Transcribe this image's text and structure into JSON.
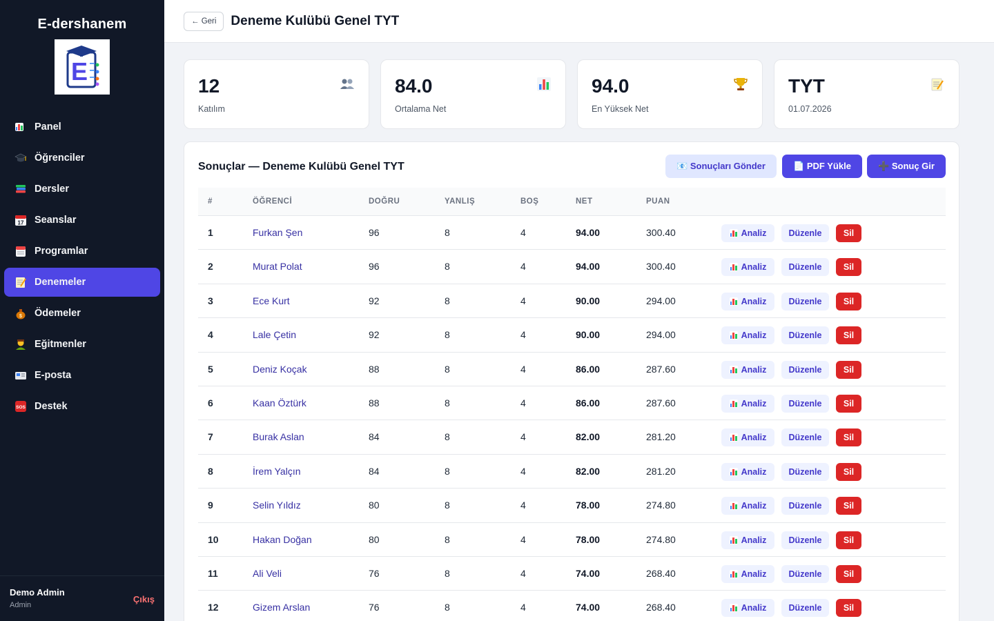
{
  "sidebar": {
    "brand": "E-dershanem",
    "nav": [
      {
        "label": "Panel",
        "icon": "bar-chart-icon",
        "active": false
      },
      {
        "label": "Öğrenciler",
        "icon": "graduation-cap-icon",
        "active": false
      },
      {
        "label": "Dersler",
        "icon": "books-icon",
        "active": false
      },
      {
        "label": "Seanslar",
        "icon": "calendar-icon",
        "active": false
      },
      {
        "label": "Programlar",
        "icon": "tear-off-calendar-icon",
        "active": false
      },
      {
        "label": "Denemeler",
        "icon": "memo-icon",
        "active": true
      },
      {
        "label": "Ödemeler",
        "icon": "money-bag-icon",
        "active": false
      },
      {
        "label": "Eğitmenler",
        "icon": "teacher-icon",
        "active": false
      },
      {
        "label": "E-posta",
        "icon": "envelope-icon",
        "active": false
      },
      {
        "label": "Destek",
        "icon": "sos-icon",
        "active": false
      }
    ],
    "user": {
      "name": "Demo Admin",
      "role": "Admin",
      "logout": "Çıkış"
    }
  },
  "header": {
    "back_label": "← Geri",
    "title": "Deneme Kulübü Genel TYT"
  },
  "stats": [
    {
      "value": "12",
      "label": "Katılım",
      "icon": "people-icon"
    },
    {
      "value": "84.0",
      "label": "Ortalama Net",
      "icon": "bar-chart-icon"
    },
    {
      "value": "94.0",
      "label": "En Yüksek Net",
      "icon": "trophy-icon"
    },
    {
      "value": "TYT",
      "label": "01.07.2026",
      "icon": "memo-icon"
    }
  ],
  "results": {
    "title": "Sonuçlar — Deneme Kulübü Genel TYT",
    "send_label": "📧 Sonuçları Gönder",
    "pdf_label": "📄 PDF Yükle",
    "add_label": "➕ Sonuç Gir",
    "columns": [
      "#",
      "ÖĞRENCİ",
      "DOĞRU",
      "YANLIŞ",
      "BOŞ",
      "NET",
      "PUAN"
    ],
    "action_labels": {
      "analyze": "Analiz",
      "edit": "Düzenle",
      "delete": "Sil"
    },
    "rows": [
      {
        "idx": "1",
        "name": "Furkan Şen",
        "correct": "96",
        "wrong": "8",
        "blank": "4",
        "net": "94.00",
        "score": "300.40"
      },
      {
        "idx": "2",
        "name": "Murat Polat",
        "correct": "96",
        "wrong": "8",
        "blank": "4",
        "net": "94.00",
        "score": "300.40"
      },
      {
        "idx": "3",
        "name": "Ece Kurt",
        "correct": "92",
        "wrong": "8",
        "blank": "4",
        "net": "90.00",
        "score": "294.00"
      },
      {
        "idx": "4",
        "name": "Lale Çetin",
        "correct": "92",
        "wrong": "8",
        "blank": "4",
        "net": "90.00",
        "score": "294.00"
      },
      {
        "idx": "5",
        "name": "Deniz Koçak",
        "correct": "88",
        "wrong": "8",
        "blank": "4",
        "net": "86.00",
        "score": "287.60"
      },
      {
        "idx": "6",
        "name": "Kaan Öztürk",
        "correct": "88",
        "wrong": "8",
        "blank": "4",
        "net": "86.00",
        "score": "287.60"
      },
      {
        "idx": "7",
        "name": "Burak Aslan",
        "correct": "84",
        "wrong": "8",
        "blank": "4",
        "net": "82.00",
        "score": "281.20"
      },
      {
        "idx": "8",
        "name": "İrem Yalçın",
        "correct": "84",
        "wrong": "8",
        "blank": "4",
        "net": "82.00",
        "score": "281.20"
      },
      {
        "idx": "9",
        "name": "Selin Yıldız",
        "correct": "80",
        "wrong": "8",
        "blank": "4",
        "net": "78.00",
        "score": "274.80"
      },
      {
        "idx": "10",
        "name": "Hakan Doğan",
        "correct": "80",
        "wrong": "8",
        "blank": "4",
        "net": "78.00",
        "score": "274.80"
      },
      {
        "idx": "11",
        "name": "Ali Veli",
        "correct": "76",
        "wrong": "8",
        "blank": "4",
        "net": "74.00",
        "score": "268.40"
      },
      {
        "idx": "12",
        "name": "Gizem Arslan",
        "correct": "76",
        "wrong": "8",
        "blank": "4",
        "net": "74.00",
        "score": "268.40"
      }
    ]
  },
  "colors": {
    "sidebar_bg": "#111827",
    "accent": "#4f46e5",
    "danger": "#dc2626",
    "link": "#3730a3"
  }
}
